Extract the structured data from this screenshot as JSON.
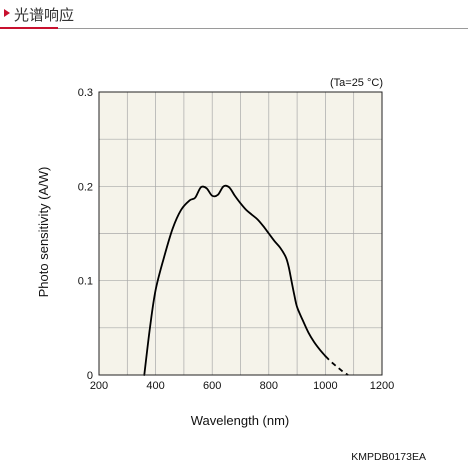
{
  "header": {
    "title": "光谱响应",
    "accent_color": "#c8102e"
  },
  "chart_data": {
    "type": "line",
    "title": "",
    "xlabel": "Wavelength (nm)",
    "ylabel": "Photo sensitivity (A/W)",
    "xlim": [
      200,
      1200
    ],
    "ylim": [
      0,
      0.3
    ],
    "xticks": [
      200,
      400,
      600,
      800,
      1000,
      1200
    ],
    "xtick_labels": [
      "200",
      "400",
      "600",
      "800",
      "1000",
      "1200"
    ],
    "yticks": [
      0,
      0.1,
      0.2,
      0.3
    ],
    "ytick_labels": [
      "0",
      "0.1",
      "0.2",
      "0.3"
    ],
    "grid": true,
    "plot_background": "#f5f3ea",
    "annotation": "(Ta=25 °C)",
    "series": [
      {
        "style": "solid",
        "x": [
          360,
          380,
          400,
          430,
          460,
          490,
          520,
          540,
          560,
          580,
          600,
          620,
          640,
          660,
          680,
          700,
          720,
          740,
          760,
          780,
          800,
          820,
          840,
          860,
          870,
          880,
          890,
          900,
          920,
          940,
          960,
          980,
          1000
        ],
        "y": [
          0,
          0.05,
          0.09,
          0.125,
          0.155,
          0.175,
          0.185,
          0.188,
          0.199,
          0.198,
          0.19,
          0.191,
          0.2,
          0.199,
          0.19,
          0.182,
          0.175,
          0.17,
          0.165,
          0.158,
          0.15,
          0.142,
          0.135,
          0.125,
          0.115,
          0.1,
          0.085,
          0.072,
          0.058,
          0.045,
          0.035,
          0.027,
          0.02
        ]
      },
      {
        "style": "dashed",
        "x": [
          1000,
          1020,
          1040,
          1060,
          1080
        ],
        "y": [
          0.02,
          0.014,
          0.009,
          0.004,
          0.0
        ]
      }
    ]
  },
  "footer_code": "KMPDB0173EA"
}
